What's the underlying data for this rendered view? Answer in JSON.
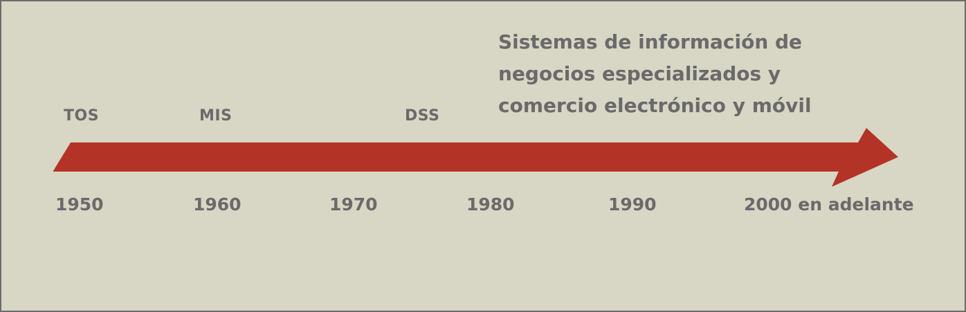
{
  "headline": {
    "lines": [
      "Sistemas de información de",
      "negocios especializados y",
      "comercio electrónico y móvil"
    ]
  },
  "systems": {
    "tos": "TOS",
    "mis": "MIS",
    "dss": "DSS"
  },
  "years": {
    "y1950": "1950",
    "y1960": "1960",
    "y1970": "1970",
    "y1980": "1980",
    "y1990": "1990",
    "y2000": "2000 en adelante"
  },
  "colors": {
    "background": "#d8d6c4",
    "border": "#6b6b6b",
    "arrow": "#b33327",
    "text": "#6a6a6a"
  }
}
